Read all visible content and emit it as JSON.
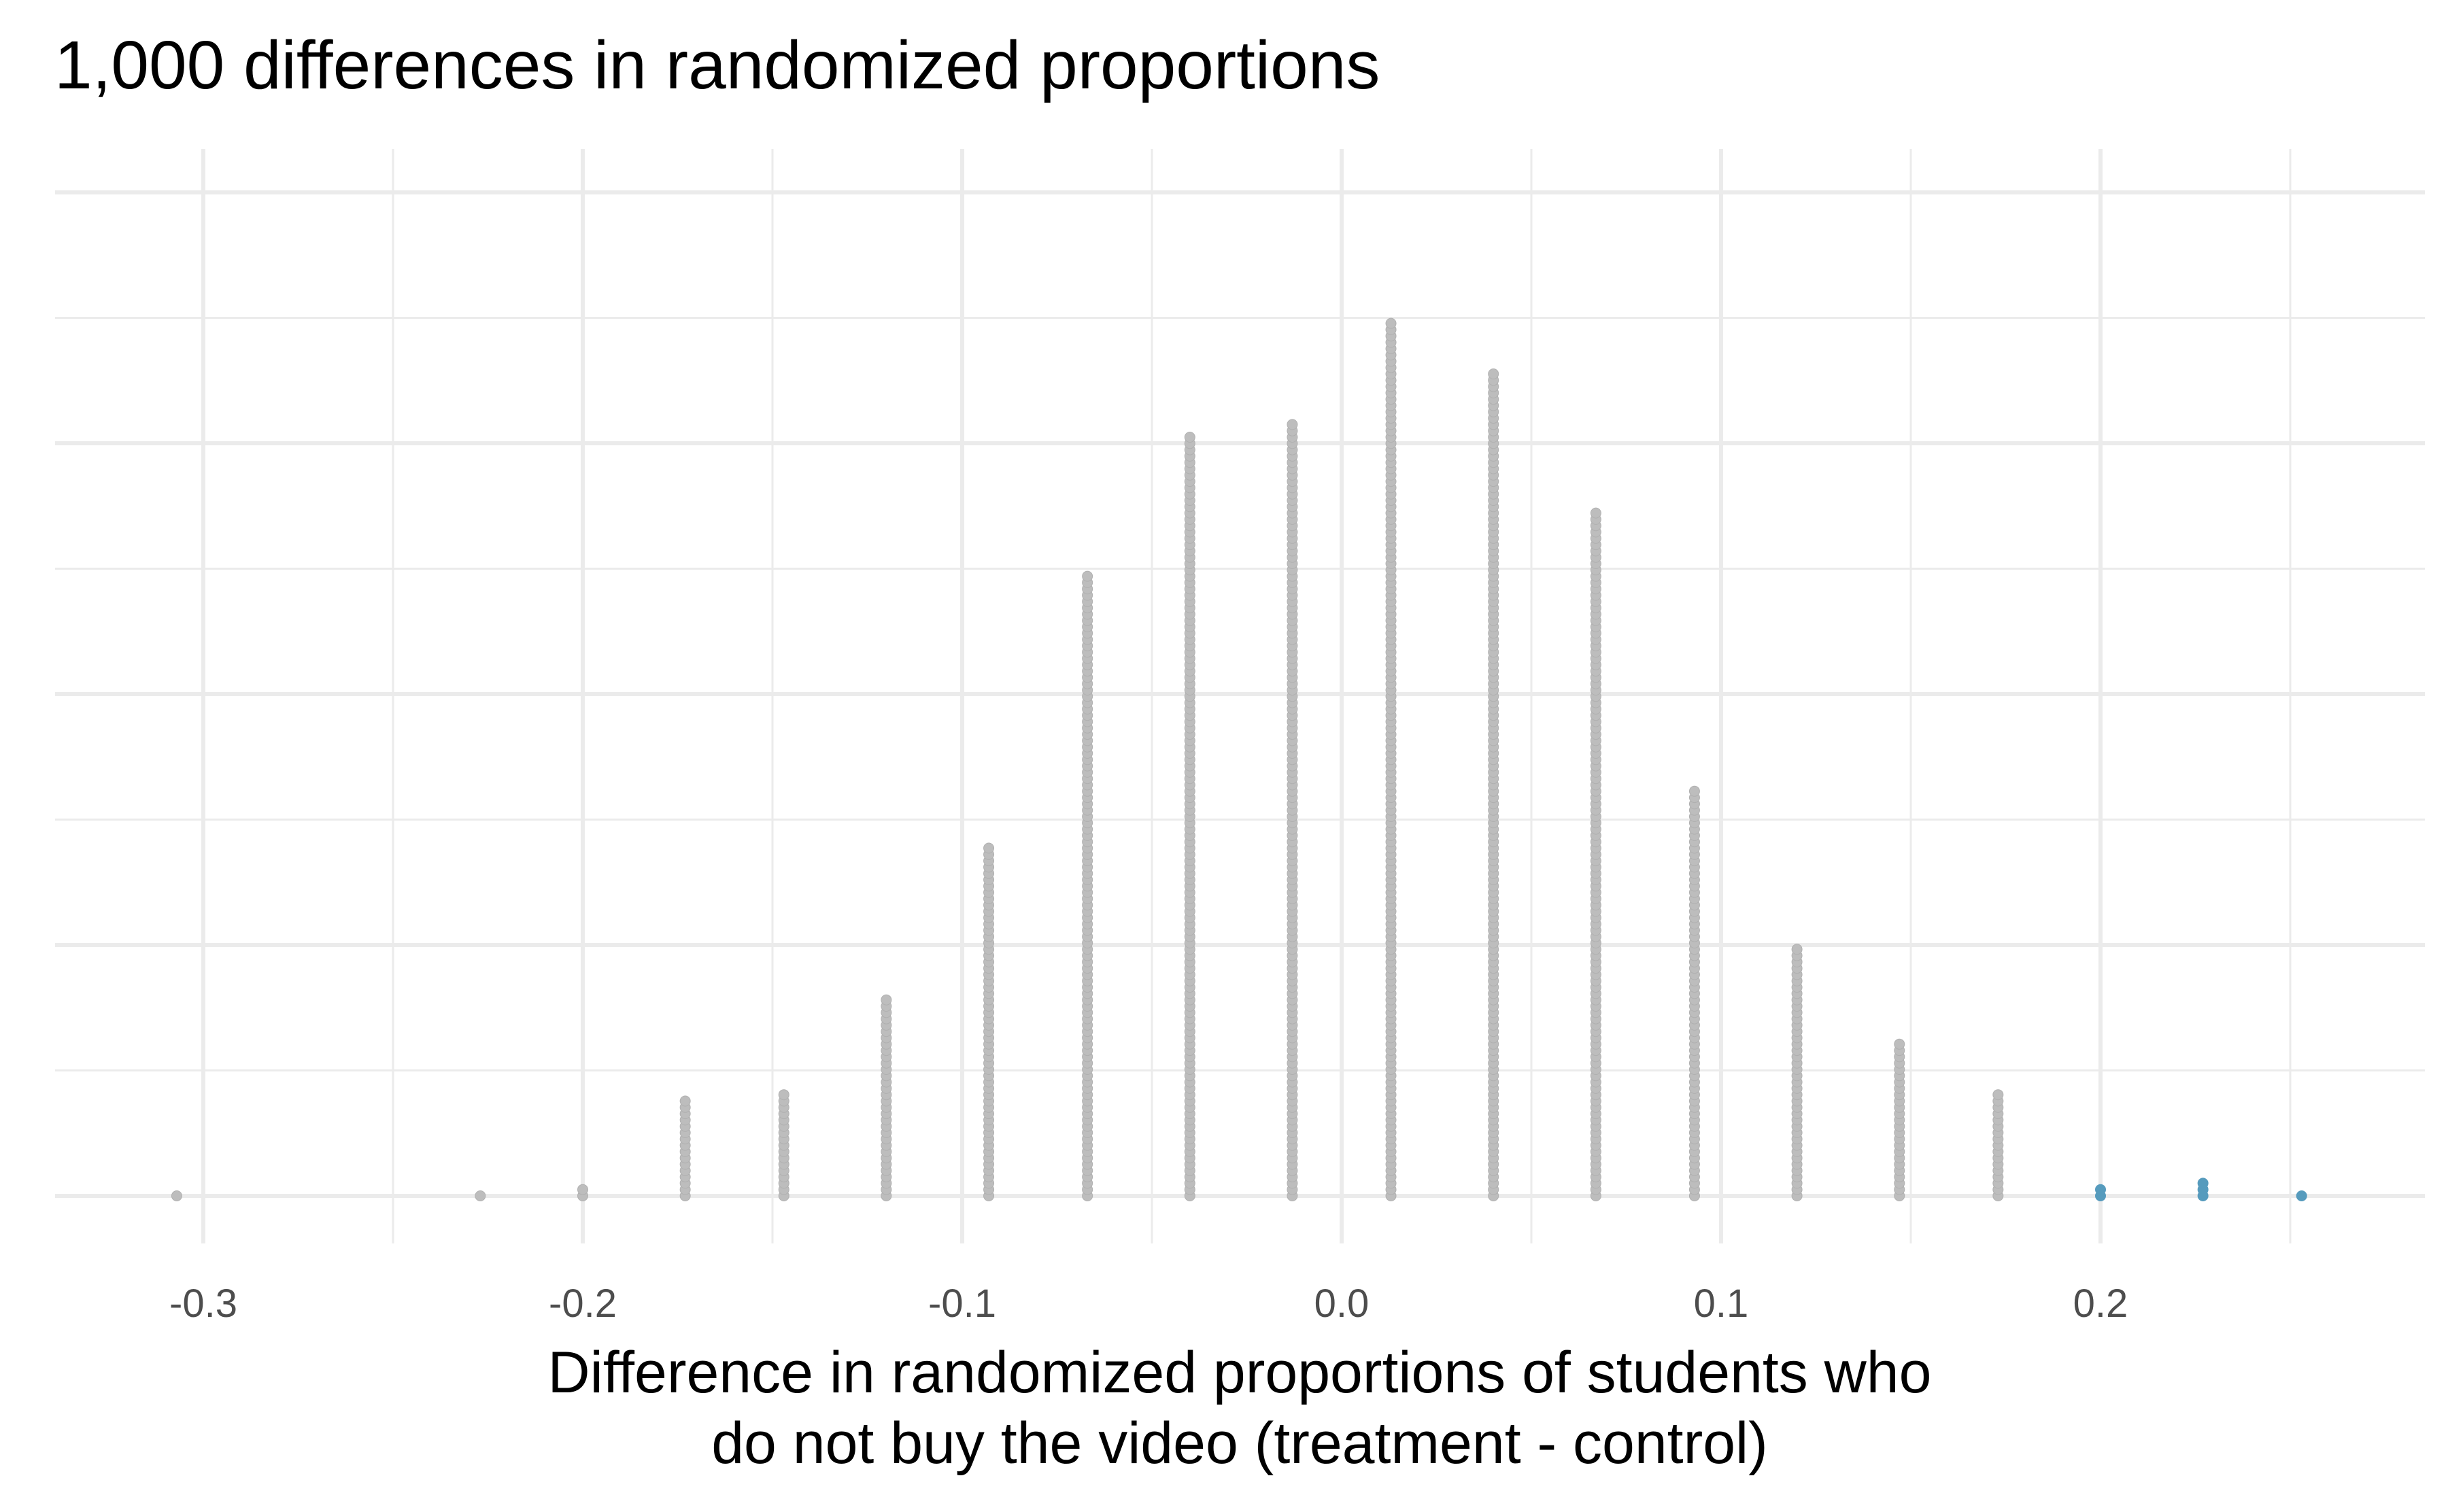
{
  "chart_data": {
    "type": "dotplot",
    "title": "1,000 differences in randomized proportions",
    "xlabel_lines": [
      "Difference in randomized proportions of students who",
      "do not buy the video (treatment - control)"
    ],
    "ylabel": "",
    "xlim": [
      -0.34,
      0.285
    ],
    "x_ticks": [
      "-0.3",
      "-0.2",
      "-0.1",
      "0.0",
      "0.1",
      "0.2"
    ],
    "x_tick_values": [
      -0.3,
      -0.2,
      -0.1,
      0.0,
      0.1,
      0.2
    ],
    "grid": true,
    "colors": {
      "default": "#bdbdbd",
      "highlight": "#569bbd"
    },
    "highlight_threshold": 0.2,
    "points": [
      {
        "x": -0.307,
        "count": 1
      },
      {
        "x": -0.227,
        "count": 1
      },
      {
        "x": -0.2,
        "count": 2
      },
      {
        "x": -0.173,
        "count": 16
      },
      {
        "x": -0.147,
        "count": 17
      },
      {
        "x": -0.12,
        "count": 32
      },
      {
        "x": -0.093,
        "count": 56
      },
      {
        "x": -0.067,
        "count": 99
      },
      {
        "x": -0.04,
        "count": 121
      },
      {
        "x": -0.013,
        "count": 123
      },
      {
        "x": 0.013,
        "count": 139
      },
      {
        "x": 0.04,
        "count": 131
      },
      {
        "x": 0.067,
        "count": 109
      },
      {
        "x": 0.093,
        "count": 65
      },
      {
        "x": 0.12,
        "count": 40
      },
      {
        "x": 0.147,
        "count": 25
      },
      {
        "x": 0.173,
        "count": 17
      },
      {
        "x": 0.2,
        "count": 2,
        "highlight": true
      },
      {
        "x": 0.227,
        "count": 3,
        "highlight": true
      },
      {
        "x": 0.253,
        "count": 1,
        "highlight": true
      }
    ]
  }
}
